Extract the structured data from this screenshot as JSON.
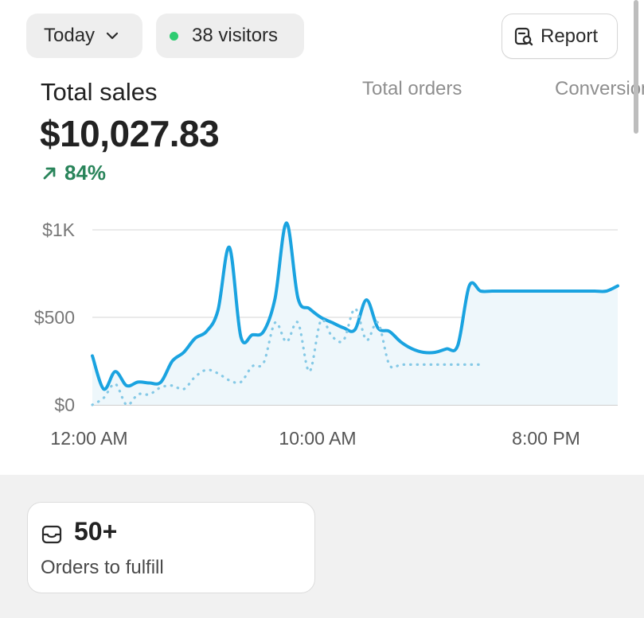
{
  "header": {
    "date_filter": {
      "label": "Today",
      "icon": "chevron-down-icon"
    },
    "visitors": {
      "label": "38 visitors",
      "dot_color": "#2ecc71",
      "icon": "live-dot-icon"
    },
    "report_button": {
      "label": "Report",
      "icon": "report-search-icon"
    }
  },
  "metrics": {
    "active": {
      "label": "Total sales",
      "value": "$10,027.83",
      "change": "84%",
      "change_color": "#29845a",
      "change_icon": "arrow-up-right-icon"
    },
    "tabs": [
      {
        "label": "Total orders"
      },
      {
        "label": "Conversion rate"
      }
    ]
  },
  "chart_data": {
    "type": "line",
    "x_tick_labels": [
      "12:00 AM",
      "10:00 AM",
      "8:00 PM"
    ],
    "y_tick_labels": [
      "$0",
      "$500",
      "$1K"
    ],
    "ylim": [
      0,
      1000
    ],
    "grid": true,
    "colors": {
      "primary": "#1aa3e0",
      "comparison": "#85c9e6",
      "fill": "#eef7fb"
    },
    "series": [
      {
        "style": "solid",
        "x": [
          0,
          0.5,
          1,
          1.5,
          2,
          2.5,
          3,
          3.5,
          4,
          4.5,
          5,
          5.5,
          6,
          6.5,
          7,
          7.5,
          8,
          8.5,
          9,
          9.5,
          10,
          10.5,
          11,
          11.5,
          12,
          12.5,
          13,
          13.5,
          14,
          14.5,
          15,
          15.5,
          16,
          16.5,
          17,
          17.5,
          18,
          18.5,
          19,
          19.5,
          20,
          20.5,
          21,
          21.5,
          22,
          22.5,
          23
        ],
        "values": [
          280,
          90,
          190,
          110,
          130,
          125,
          130,
          250,
          300,
          380,
          420,
          540,
          900,
          390,
          400,
          420,
          610,
          1040,
          610,
          550,
          500,
          470,
          440,
          430,
          600,
          440,
          420,
          360,
          320,
          300,
          300,
          320,
          340,
          680,
          650,
          650,
          650,
          650,
          650,
          650,
          650,
          650,
          650,
          650,
          650,
          650,
          680
        ]
      },
      {
        "style": "dotted",
        "x": [
          0,
          0.5,
          1,
          1.5,
          2,
          2.5,
          3,
          3.5,
          4,
          4.5,
          5,
          5.5,
          6,
          6.5,
          7,
          7.5,
          8,
          8.5,
          9,
          9.5,
          10,
          10.5,
          11,
          11.5,
          12,
          12.5,
          13,
          13.5,
          14,
          14.5,
          15,
          15.5,
          16,
          16.5,
          17
        ],
        "values": [
          0,
          40,
          120,
          0,
          60,
          60,
          100,
          110,
          90,
          160,
          200,
          180,
          140,
          130,
          220,
          240,
          470,
          360,
          470,
          190,
          480,
          390,
          370,
          550,
          370,
          470,
          230,
          230,
          230,
          230,
          230,
          230,
          230,
          230,
          230
        ]
      }
    ]
  },
  "cards": [
    {
      "value": "50+",
      "label": "Orders to fulfill",
      "icon": "inbox-icon"
    }
  ]
}
